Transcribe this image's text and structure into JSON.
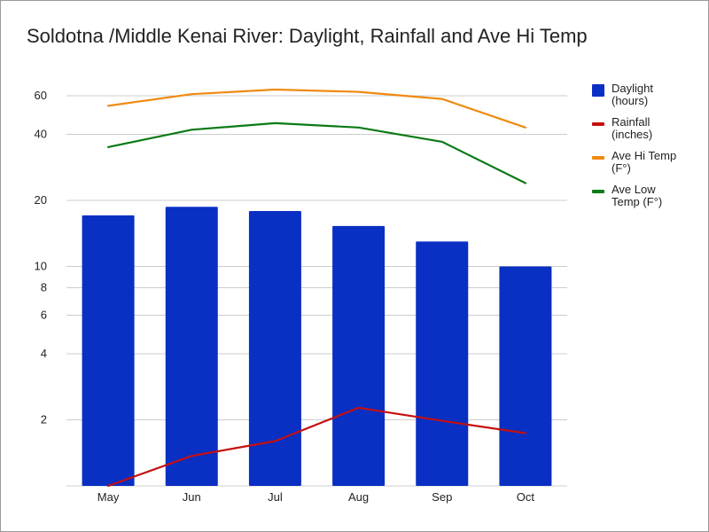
{
  "chart_data": {
    "type": "bar",
    "title": "Soldotna /Middle Kenai River: Daylight, Rainfall and Ave Hi Temp",
    "categories": [
      "May",
      "Jun",
      "Jul",
      "Aug",
      "Sep",
      "Oct"
    ],
    "y_scale": "log",
    "ylim": [
      1.0,
      75
    ],
    "y_ticks": [
      {
        "value": 2,
        "label": "2"
      },
      {
        "value": 4,
        "label": "4"
      },
      {
        "value": 6,
        "label": "6"
      },
      {
        "value": 8,
        "label": "8"
      },
      {
        "value": 10,
        "label": "10"
      },
      {
        "value": 20,
        "label": "20"
      },
      {
        "value": 40,
        "label": "40"
      },
      {
        "value": 60,
        "label": "60"
      }
    ],
    "grid": true,
    "legend_position": "right",
    "series": [
      {
        "name": "Daylight\n(hours)",
        "kind": "bar",
        "color": "#0a2fc3",
        "values": [
          17.1,
          18.7,
          17.9,
          15.3,
          13.0,
          10.0
        ]
      },
      {
        "name": "Rainfall\n(inches)",
        "kind": "line",
        "color": "#c41010",
        "values": [
          1.0,
          1.37,
          1.6,
          2.27,
          1.98,
          1.74
        ]
      },
      {
        "name": "Ave Hi Temp\n(F°)",
        "kind": "line",
        "color": "#f08a11",
        "values": [
          54,
          61,
          64,
          62.5,
          58,
          43
        ]
      },
      {
        "name": "Ave Low\nTemp (F°)",
        "kind": "line",
        "color": "#0b7a16",
        "values": [
          35,
          42,
          45,
          43,
          37,
          24
        ]
      }
    ]
  }
}
